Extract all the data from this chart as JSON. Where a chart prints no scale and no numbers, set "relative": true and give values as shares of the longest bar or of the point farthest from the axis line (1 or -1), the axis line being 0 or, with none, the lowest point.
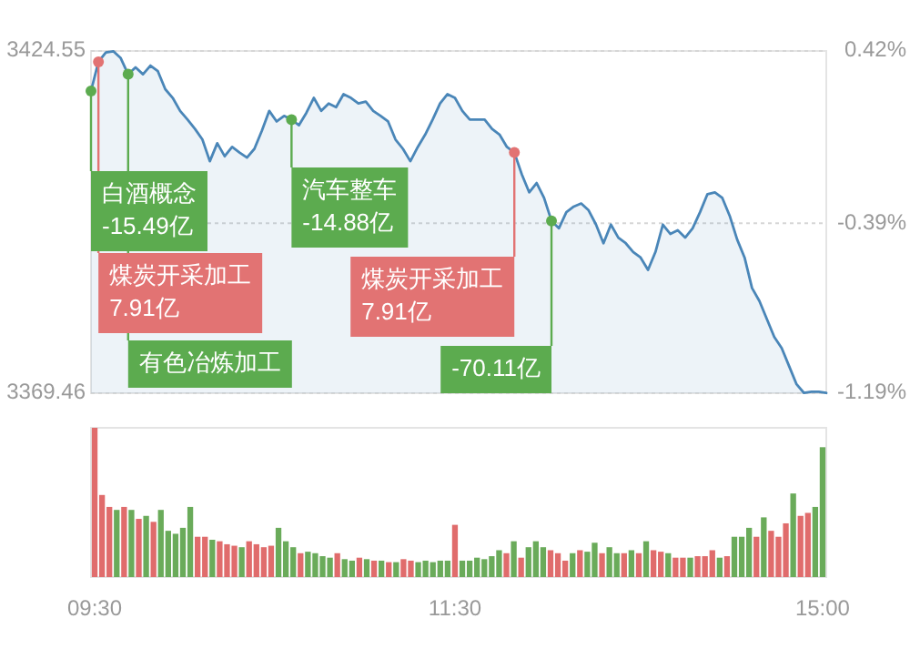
{
  "chart_data": [
    {
      "type": "area",
      "grid": "y",
      "tick_labels": "y",
      "categories": [
        null,
        null,
        null,
        null,
        null,
        null,
        null,
        null,
        null,
        null,
        null,
        null,
        null,
        null,
        null,
        null,
        null,
        null,
        null,
        null,
        null,
        null,
        null,
        null,
        null,
        null,
        null,
        null,
        null,
        null,
        null,
        null,
        null,
        null,
        null,
        null,
        null,
        null,
        null,
        null,
        null,
        null,
        null,
        null,
        null,
        null,
        null,
        null,
        null,
        null,
        null,
        null,
        null,
        null,
        null,
        null,
        null,
        null,
        null,
        null,
        null,
        null,
        null,
        null,
        null,
        null,
        null,
        null,
        null,
        null,
        null,
        null,
        null,
        null,
        null,
        null,
        null,
        null,
        null,
        null,
        null,
        null,
        null,
        null,
        null,
        null,
        null,
        null,
        null,
        null,
        null,
        null,
        null,
        null,
        null,
        null,
        null,
        null,
        null,
        null
      ],
      "ylim": [
        3369.46,
        3424.55
      ],
      "yticks": [
        3369.46,
        3424.55
      ],
      "ref_lines": [
        {
          "axis": "y2",
          "value": -0.39,
          "color": "#d6d6d6",
          "line_style": "dotted"
        }
      ],
      "y2lim": [
        -1.19,
        0.42
      ],
      "y2ticks": [
        {
          "value": -1.19,
          "label": "-1.19%"
        },
        {
          "value": -0.39,
          "label": "-0.39%"
        },
        {
          "value": 0.42,
          "label": "0.42%"
        }
      ],
      "series": [
        {
          "color": "#4a86b8",
          "values": [
            3418.1,
            3422.8,
            3424.3,
            3424.5,
            3423.4,
            3420.8,
            3421.9,
            3420.8,
            3422.2,
            3421.3,
            3418.4,
            3417.0,
            3414.9,
            3413.5,
            3412.0,
            3410.3,
            3406.8,
            3409.7,
            3407.6,
            3409.1,
            3408.2,
            3407.4,
            3408.8,
            3411.7,
            3414.9,
            3413.2,
            3414.1,
            3413.5,
            3412.6,
            3414.6,
            3417.0,
            3414.9,
            3416.1,
            3415.5,
            3417.6,
            3417.0,
            3416.1,
            3416.4,
            3414.9,
            3414.1,
            3413.2,
            3410.3,
            3408.8,
            3406.8,
            3409.1,
            3411.1,
            3413.5,
            3416.1,
            3417.6,
            3417.0,
            3414.9,
            3413.5,
            3413.5,
            3413.5,
            3412.0,
            3411.1,
            3409.1,
            3408.2,
            3404.7,
            3401.8,
            3403.3,
            3400.9,
            3397.2,
            3396.0,
            3398.6,
            3399.5,
            3400.0,
            3398.9,
            3396.6,
            3393.6,
            3396.6,
            3394.5,
            3393.6,
            3392.2,
            3391.3,
            3389.3,
            3392.2,
            3396.6,
            3395.1,
            3395.7,
            3394.5,
            3396.0,
            3398.6,
            3401.5,
            3401.8,
            3400.9,
            3398.0,
            3394.2,
            3391.3,
            3386.4,
            3384.3,
            3381.4,
            3378.5,
            3376.7,
            3373.8,
            3370.9,
            3369.5,
            3369.7,
            3369.7,
            3369.5
          ]
        }
      ],
      "annotations": [
        "白酒概念\n-15.49亿",
        "煤炭开采加工\n7.91亿",
        "有色冶炼加工",
        "汽车整车\n-14.88亿",
        "煤炭开采加工\n7.91亿",
        "-70.11亿"
      ]
    },
    {
      "type": "bar",
      "relative": true,
      "tick_labels": "x",
      "categories": [
        "09:30",
        null,
        null,
        null,
        null,
        null,
        null,
        null,
        null,
        null,
        null,
        null,
        null,
        null,
        null,
        null,
        null,
        null,
        null,
        null,
        null,
        null,
        null,
        null,
        null,
        null,
        null,
        null,
        null,
        null,
        null,
        null,
        null,
        null,
        null,
        null,
        null,
        null,
        null,
        null,
        null,
        null,
        null,
        null,
        null,
        null,
        null,
        null,
        null,
        "11:30",
        null,
        null,
        null,
        null,
        null,
        null,
        null,
        null,
        null,
        null,
        null,
        null,
        null,
        null,
        null,
        null,
        null,
        null,
        null,
        null,
        null,
        null,
        null,
        null,
        null,
        null,
        null,
        null,
        null,
        null,
        null,
        null,
        null,
        null,
        null,
        null,
        null,
        null,
        null,
        null,
        null,
        null,
        null,
        null,
        null,
        null,
        null,
        null,
        null,
        "15:00"
      ],
      "values": [
        1.0,
        0.55,
        0.47,
        0.45,
        0.47,
        0.45,
        0.39,
        0.41,
        0.37,
        0.45,
        0.31,
        0.29,
        0.33,
        0.47,
        0.27,
        0.27,
        0.25,
        0.24,
        0.22,
        0.21,
        0.2,
        0.24,
        0.22,
        0.2,
        0.21,
        0.33,
        0.24,
        0.2,
        0.16,
        0.17,
        0.16,
        0.14,
        0.13,
        0.16,
        0.12,
        0.11,
        0.13,
        0.12,
        0.11,
        0.11,
        0.1,
        0.1,
        0.12,
        0.11,
        0.1,
        0.11,
        0.1,
        0.11,
        0.11,
        0.35,
        0.11,
        0.11,
        0.13,
        0.12,
        0.14,
        0.18,
        0.16,
        0.24,
        0.13,
        0.2,
        0.24,
        0.2,
        0.18,
        0.16,
        0.11,
        0.16,
        0.18,
        0.17,
        0.23,
        0.16,
        0.2,
        0.16,
        0.16,
        0.18,
        0.16,
        0.24,
        0.18,
        0.17,
        0.16,
        0.13,
        0.13,
        0.13,
        0.14,
        0.14,
        0.18,
        0.13,
        0.14,
        0.27,
        0.27,
        0.33,
        0.27,
        0.4,
        0.31,
        0.27,
        0.36,
        0.56,
        0.41,
        0.43,
        0.47,
        0.87
      ],
      "colors": [
        "#e06c6c",
        "#e06c6c",
        "#e06c6c",
        "#6aab5a",
        "#e06c6c",
        "#6aab5a",
        "#e06c6c",
        "#6aab5a",
        "#e06c6c",
        "#6aab5a",
        "#6aab5a",
        "#6aab5a",
        "#6aab5a",
        "#6aab5a",
        "#e06c6c",
        "#e06c6c",
        "#6aab5a",
        "#e06c6c",
        "#e06c6c",
        "#e06c6c",
        "#6aab5a",
        "#e06c6c",
        "#e06c6c",
        "#e06c6c",
        "#e06c6c",
        "#6aab5a",
        "#6aab5a",
        "#6aab5a",
        "#e06c6c",
        "#6aab5a",
        "#6aab5a",
        "#6aab5a",
        "#6aab5a",
        "#e06c6c",
        "#6aab5a",
        "#6aab5a",
        "#e06c6c",
        "#6aab5a",
        "#e06c6c",
        "#6aab5a",
        "#e06c6c",
        "#6aab5a",
        "#e06c6c",
        "#e06c6c",
        "#6aab5a",
        "#6aab5a",
        "#6aab5a",
        "#6aab5a",
        "#6aab5a",
        "#e06c6c",
        "#6aab5a",
        "#6aab5a",
        "#6aab5a",
        "#6aab5a",
        "#6aab5a",
        "#6aab5a",
        "#e06c6c",
        "#6aab5a",
        "#e06c6c",
        "#6aab5a",
        "#6aab5a",
        "#6aab5a",
        "#e06c6c",
        "#e06c6c",
        "#e06c6c",
        "#6aab5a",
        "#e06c6c",
        "#6aab5a",
        "#6aab5a",
        "#e06c6c",
        "#6aab5a",
        "#6aab5a",
        "#e06c6c",
        "#6aab5a",
        "#e06c6c",
        "#6aab5a",
        "#e06c6c",
        "#e06c6c",
        "#6aab5a",
        "#e06c6c",
        "#e06c6c",
        "#6aab5a",
        "#e06c6c",
        "#e06c6c",
        "#e06c6c",
        "#6aab5a",
        "#e06c6c",
        "#6aab5a",
        "#6aab5a",
        "#6aab5a",
        "#e06c6c",
        "#6aab5a",
        "#e06c6c",
        "#e06c6c",
        "#e06c6c",
        "#6aab5a",
        "#e06c6c",
        "#e06c6c",
        "#6aab5a",
        "#6aab5a"
      ]
    }
  ]
}
